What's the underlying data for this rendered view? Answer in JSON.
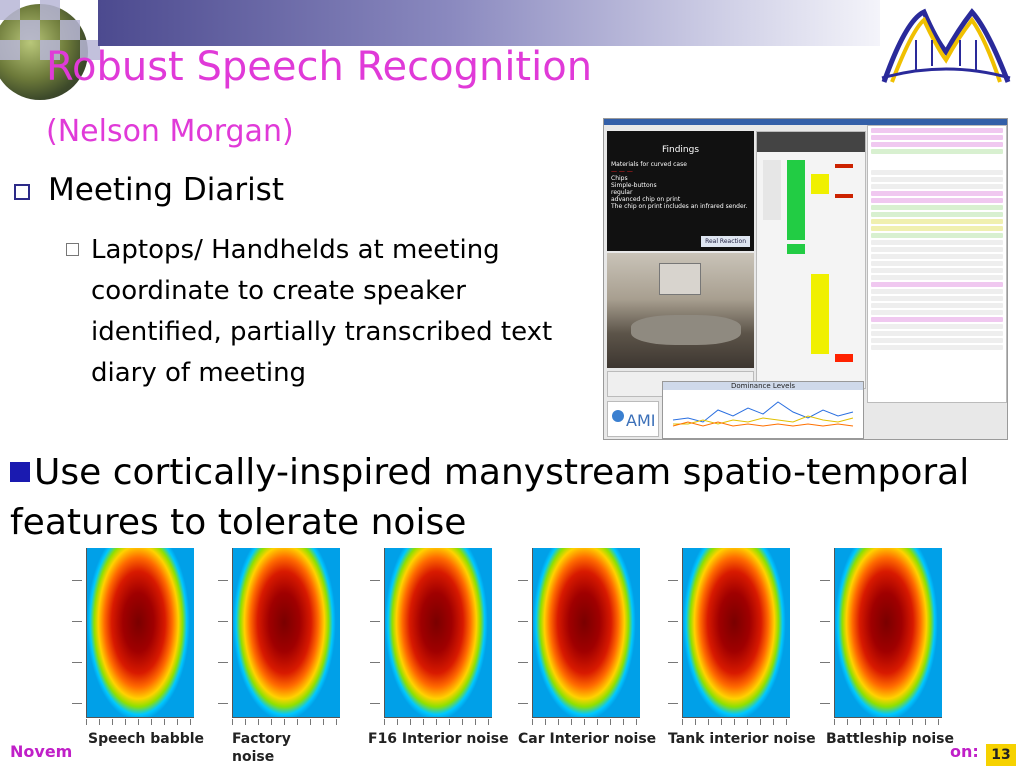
{
  "slide": {
    "title": "Robust Speech Recognition",
    "subtitle": "(Nelson Morgan)",
    "bullet1": "Meeting Diarist",
    "bullet1_sub": "Laptops/ Handhelds at meeting coordinate to create speaker identified, partially transcribed text diary of meeting",
    "bullet2": "Use cortically-inspired manystream spatio-temporal features to tolerate noise",
    "figures": [
      {
        "label": "Speech babble"
      },
      {
        "label": "Factory noise"
      },
      {
        "label": "F16 Interior noise"
      },
      {
        "label": "Car Interior noise"
      },
      {
        "label": "Tank interior noise"
      },
      {
        "label": "Battleship noise"
      }
    ],
    "footer_left": "Novem",
    "footer_right": "on: 13",
    "page_number": "13"
  },
  "screenshot": {
    "slide_heading": "Findings",
    "slide_items": [
      "Materials for curved case",
      "Chips",
      "Simple-buttons",
      "regular",
      "advanced chip on print",
      "The chip on print includes an infrared sender."
    ],
    "slide_button": "Real Reaction",
    "dominance_title": "Dominance Levels",
    "ami_logo": "AMI"
  },
  "colors": {
    "title": "#e03ad8",
    "footer": "#c020c8",
    "bullet_square": "#1a1ab0",
    "page_badge": "#f6d200"
  }
}
